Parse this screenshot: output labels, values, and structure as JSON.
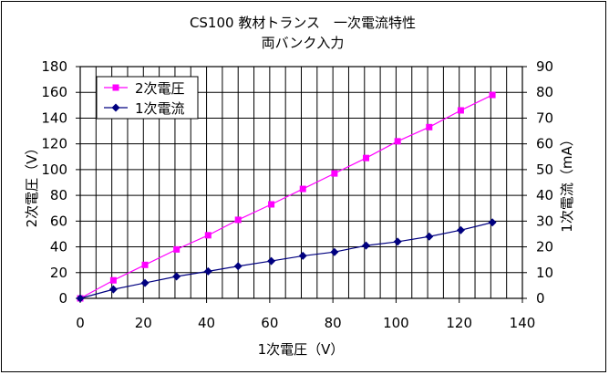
{
  "chart_data": {
    "type": "line",
    "title": "CS100 教材トランス　一次電流特性",
    "subtitle": "両バンク入力",
    "xlabel": "1次電圧（V）",
    "ylabel": "2次電圧（V）",
    "y2label": "1次電流（mA）",
    "xlim": [
      0,
      140
    ],
    "xticks": [
      0,
      20,
      40,
      60,
      80,
      100,
      120,
      140
    ],
    "ylim": [
      0,
      180
    ],
    "yticks": [
      0,
      20,
      40,
      60,
      80,
      100,
      120,
      140,
      160,
      180
    ],
    "y2lim": [
      0,
      90
    ],
    "y2ticks": [
      0,
      10,
      20,
      30,
      40,
      50,
      60,
      70,
      80,
      90
    ],
    "grid": true,
    "legend_position": "top-left",
    "x": [
      0,
      10.5,
      20.5,
      30.5,
      40.5,
      50,
      60.5,
      70.5,
      80.5,
      90.5,
      100.5,
      110.5,
      120.5,
      130.5
    ],
    "series": [
      {
        "name": "2次電圧",
        "axis": "left",
        "color": "#ff00ff",
        "marker": "square",
        "values": [
          0,
          14,
          26,
          38,
          49,
          61,
          73,
          85,
          97,
          109,
          122,
          133,
          146,
          158
        ]
      },
      {
        "name": "1次電流",
        "axis": "right",
        "color": "#000080",
        "marker": "diamond",
        "values": [
          0,
          3.5,
          6,
          8.5,
          10.5,
          12.5,
          14.5,
          16.5,
          18,
          20.5,
          22,
          24,
          26.5,
          29.5
        ]
      }
    ]
  }
}
